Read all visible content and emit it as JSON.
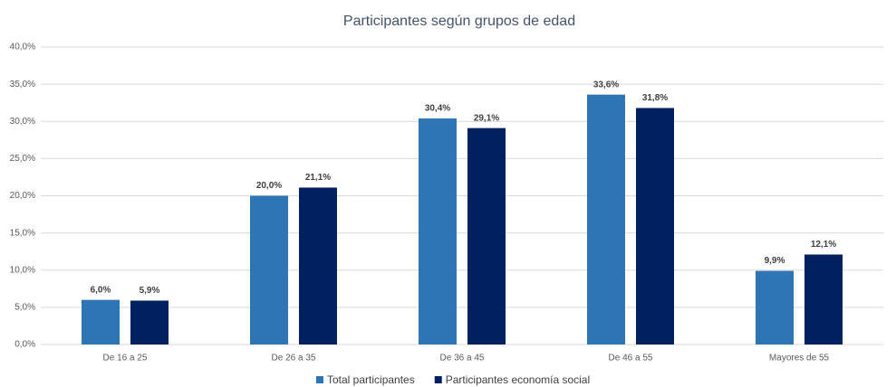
{
  "chart_data": {
    "type": "bar",
    "title": "Participantes según grupos de edad",
    "categories": [
      "De 16 a 25",
      "De 26 a 35",
      "De 36 a 45",
      "De 46 a 55",
      "Mayores de 55"
    ],
    "series": [
      {
        "name": "Total participantes",
        "color": "#2e75b6",
        "values": [
          6.0,
          20.0,
          30.4,
          33.6,
          9.9
        ],
        "value_labels": [
          "6,0%",
          "20,0%",
          "30,4%",
          "33,6%",
          "9,9%"
        ]
      },
      {
        "name": "Participantes economía social",
        "color": "#002060",
        "values": [
          5.9,
          21.1,
          29.1,
          31.8,
          12.1
        ],
        "value_labels": [
          "5,9%",
          "21,1%",
          "29,1%",
          "31,8%",
          "12,1%"
        ]
      }
    ],
    "ylim": [
      0,
      40
    ],
    "yticks": [
      {
        "value": 0,
        "label": "0,0%"
      },
      {
        "value": 5,
        "label": "5,0%"
      },
      {
        "value": 10,
        "label": "10,0%"
      },
      {
        "value": 15,
        "label": "15,0%"
      },
      {
        "value": 20,
        "label": "20,0%"
      },
      {
        "value": 25,
        "label": "25,0%"
      },
      {
        "value": 30,
        "label": "30,0%"
      },
      {
        "value": 35,
        "label": "35,0%"
      },
      {
        "value": 40,
        "label": "40,0%"
      }
    ],
    "grid": true,
    "legend": "bottom"
  }
}
